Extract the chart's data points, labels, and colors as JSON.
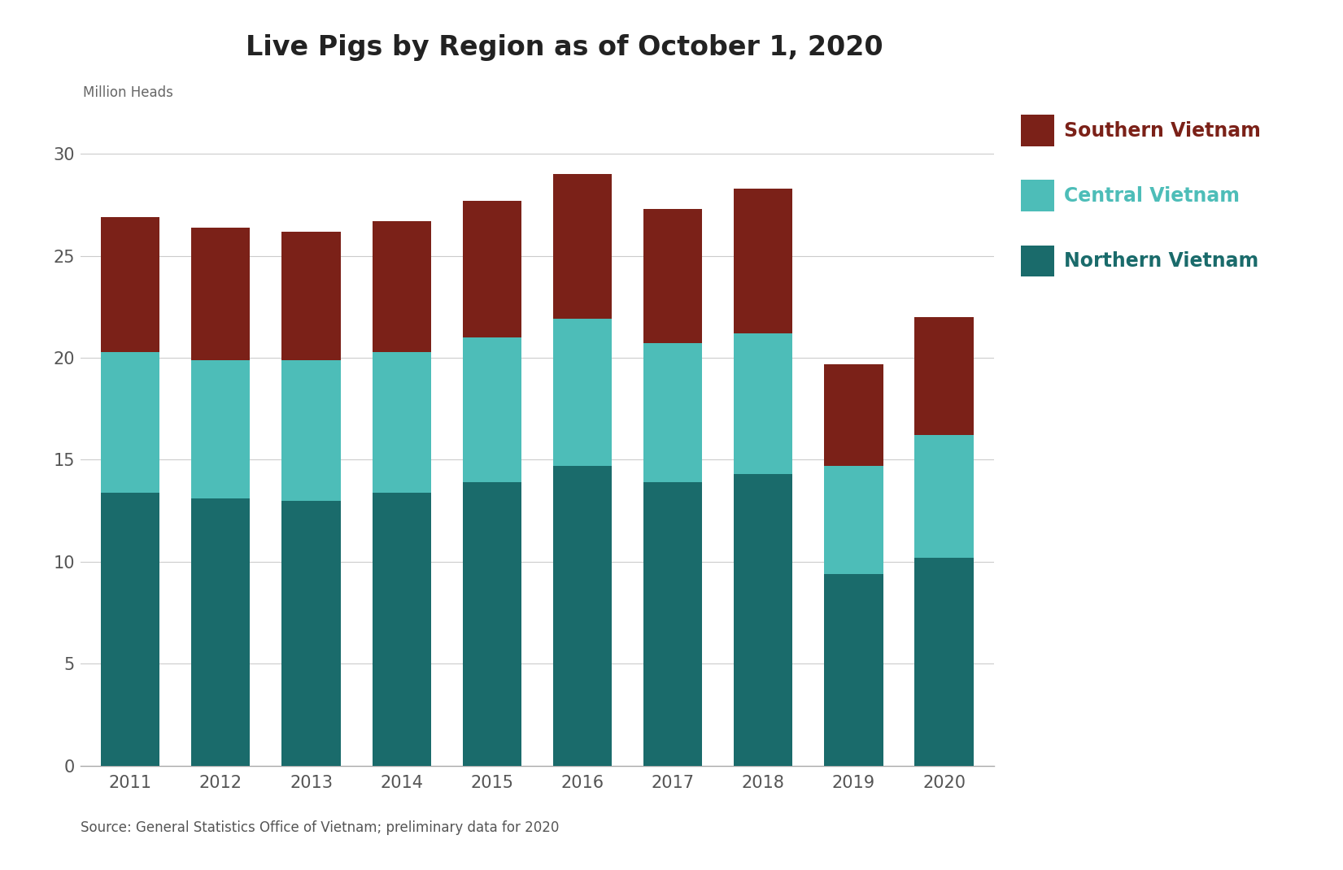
{
  "title": "Live Pigs by Region as of October 1, 2020",
  "ylabel": "Million Heads",
  "source": "Source: General Statistics Office of Vietnam; preliminary data for 2020",
  "years": [
    "2011",
    "2012",
    "2013",
    "2014",
    "2015",
    "2016",
    "2017",
    "2018",
    "2019",
    "2020"
  ],
  "northern_vietnam": [
    13.4,
    13.1,
    13.0,
    13.4,
    13.9,
    14.7,
    13.9,
    14.3,
    9.4,
    10.2
  ],
  "central_vietnam": [
    6.9,
    6.8,
    6.9,
    6.9,
    7.1,
    7.2,
    6.8,
    6.9,
    5.3,
    6.0
  ],
  "southern_vietnam": [
    6.6,
    6.5,
    6.3,
    6.4,
    6.7,
    7.1,
    6.6,
    7.1,
    5.0,
    5.8
  ],
  "color_northern": "#1a6b6b",
  "color_central": "#4dbdb8",
  "color_southern": "#7b2118",
  "background_color": "#ffffff",
  "ylim": [
    0,
    32
  ],
  "yticks": [
    0,
    5,
    10,
    15,
    20,
    25,
    30
  ],
  "title_fontsize": 24,
  "axis_label_fontsize": 12,
  "tick_fontsize": 15,
  "legend_fontsize": 17,
  "bar_width": 0.65,
  "figsize": [
    16.51,
    10.7
  ],
  "dpi": 100
}
